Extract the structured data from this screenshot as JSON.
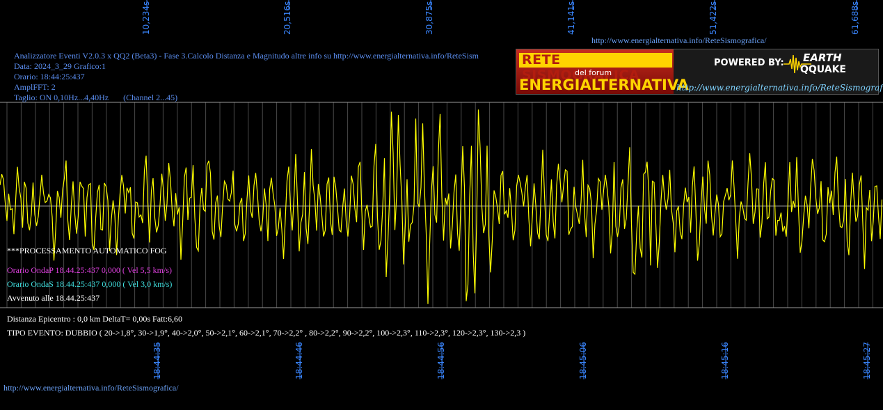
{
  "header_info": {
    "line1": "Analizzatore Eventi V2.0.3 x QQ2 (Beta3) - Fase 3.Calcolo Distanza e Magnitudo altre info su http://www.energialternativa.info/ReteSism",
    "line2": "Data: 2024_3_29 Grafico:1",
    "line3": "Orario: 18:44:25:437",
    "line4": "AmplFFT: 2",
    "line5": "Taglio: ON 0,10Hz...4,40Hz       (Channel 2...45)"
  },
  "top_url": "http://www.energialternativa.info/ReteSismografica/",
  "bottom_url": "http://www.energialternativa.info/ReteSismografica/",
  "banner": {
    "title1": "RETE SISMOGRAFICA",
    "subtitle": "del forum",
    "title2": "ENERGIALTERNATIVA",
    "powered": "POWERED BY:",
    "earth": "EARTH",
    "qquake": "QQUAKE",
    "url": "http://www.energialternativa.info/ReteSismografica"
  },
  "processing": {
    "title": "***PROCESSAMENTO AUTOMATICO FOG",
    "onda_p": "Orario OndaP 18.44.25:437  0,000 ( Vel 5,5 km/s)",
    "onda_s": "Orario OndaS 18.44.25:437  0,000 ( Vel 3,0 km/s)",
    "avvenuto": "Avvenuto alle 18.44.25:437",
    "distanza": "Distanza Epicentro : 0,0 km DeltaT= 0,00s  Fatt:6,60",
    "tipo_evento": "TIPO EVENTO: DUBBIO ( 20->1,8°, 30->1,9°, 40->2,0°, 50->2,1°, 60->2,1°, 70->2,2° , 80->2,2°, 90->2,2°, 100->2,3°, 110->2,3°, 120->2,3°, 130->2,3 )"
  },
  "top_time_labels": [
    "10,234s",
    "20,516s",
    "30,875s",
    "41,141s",
    "51,422s",
    "61,688s"
  ],
  "bottom_time_labels": [
    "18:44:35",
    "18:44:46",
    "18:44:56",
    "18:45:06",
    "18:45:16",
    "18:45:27"
  ],
  "colors": {
    "background": "#000000",
    "signal": "#ffff00",
    "grid": "#6e6e6e",
    "info_text": "#5b8ef0",
    "magenta": "#e040e0",
    "cyan": "#40e0e0",
    "time_labels": "#3a86ff"
  }
}
